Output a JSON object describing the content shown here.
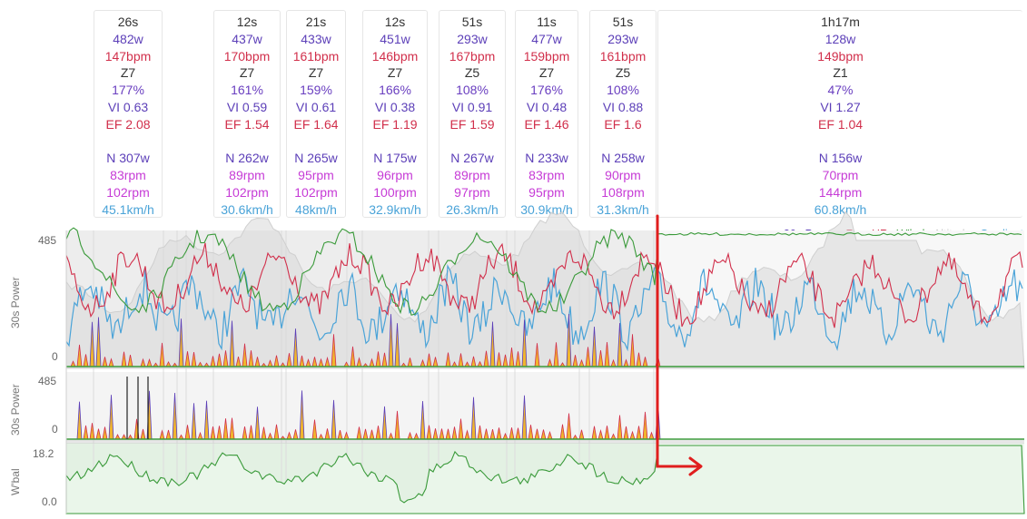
{
  "intervals": [
    {
      "duration": "26s",
      "power": "482w",
      "hr": "147bpm",
      "zone": "Z7",
      "pct": "177%",
      "vi": "VI 0.63",
      "ef": "EF 2.08",
      "np": "N 307w",
      "cadence": "83rpm",
      "max_cadence": "102rpm",
      "speed": "45.1km/h"
    },
    {
      "duration": "12s",
      "power": "437w",
      "hr": "170bpm",
      "zone": "Z7",
      "pct": "161%",
      "vi": "VI 0.59",
      "ef": "EF 1.54",
      "np": "N 262w",
      "cadence": "89rpm",
      "max_cadence": "102rpm",
      "speed": "30.6km/h"
    },
    {
      "duration": "21s",
      "power": "433w",
      "hr": "161bpm",
      "zone": "Z7",
      "pct": "159%",
      "vi": "VI 0.61",
      "ef": "EF 1.64",
      "np": "N 265w",
      "cadence": "95rpm",
      "max_cadence": "102rpm",
      "speed": "48km/h"
    },
    {
      "duration": "12s",
      "power": "451w",
      "hr": "146bpm",
      "zone": "Z7",
      "pct": "166%",
      "vi": "VI 0.38",
      "ef": "EF 1.19",
      "np": "N 175w",
      "cadence": "96rpm",
      "max_cadence": "100rpm",
      "speed": "32.9km/h"
    },
    {
      "duration": "51s",
      "power": "293w",
      "hr": "167bpm",
      "zone": "Z5",
      "pct": "108%",
      "vi": "VI 0.91",
      "ef": "EF 1.59",
      "np": "N 267w",
      "cadence": "89rpm",
      "max_cadence": "97rpm",
      "speed": "26.3km/h"
    },
    {
      "duration": "11s",
      "power": "477w",
      "hr": "159bpm",
      "zone": "Z7",
      "pct": "176%",
      "vi": "VI 0.48",
      "ef": "EF 1.46",
      "np": "N 233w",
      "cadence": "83rpm",
      "max_cadence": "95rpm",
      "speed": "30.9km/h"
    },
    {
      "duration": "51s",
      "power": "293w",
      "hr": "161bpm",
      "zone": "Z5",
      "pct": "108%",
      "vi": "VI 0.88",
      "ef": "EF 1.6",
      "np": "N 258w",
      "cadence": "90rpm",
      "max_cadence": "108rpm",
      "speed": "31.3km/h"
    },
    {
      "duration": "1h17m",
      "power": "128w",
      "hr": "149bpm",
      "zone": "Z1",
      "pct": "47%",
      "vi": "VI 1.27",
      "ef": "EF 1.04",
      "np": "N 156w",
      "cadence": "70rpm",
      "max_cadence": "144rpm",
      "speed": "60.8km/h"
    }
  ],
  "legend": [
    {
      "label": "30s Power",
      "color": "#5c3fb8"
    },
    {
      "label": "Raw HR",
      "color": "#d12f4b"
    },
    {
      "label": "W'bal",
      "color": "#3a9a3a"
    },
    {
      "label": "Altitude",
      "color": "#c8c8c8"
    },
    {
      "label": "Gradient",
      "color": "#4aa3d8"
    }
  ],
  "chart_data": [
    {
      "type": "area",
      "ylabel": "30s Power",
      "yticks": [
        "485",
        "0"
      ],
      "ylim": [
        0,
        485
      ],
      "series": [
        {
          "name": "30s Power"
        },
        {
          "name": "Raw HR"
        },
        {
          "name": "W'bal"
        },
        {
          "name": "Altitude"
        },
        {
          "name": "Gradient"
        }
      ]
    },
    {
      "type": "area",
      "ylabel": "30s Power",
      "yticks": [
        "485",
        "0"
      ],
      "ylim": [
        0,
        485
      ],
      "series": [
        {
          "name": "30s Power"
        }
      ]
    },
    {
      "type": "area",
      "ylabel": "W'bal",
      "yticks": [
        "18.2",
        "0.0"
      ],
      "ylim": [
        0,
        18.2
      ],
      "series": [
        {
          "name": "W'bal"
        }
      ]
    }
  ],
  "colors": {
    "annotation_arrow": "#e01e1e",
    "power_fill": "#f0b52e",
    "wbal_fill": "#e9f5e9"
  }
}
